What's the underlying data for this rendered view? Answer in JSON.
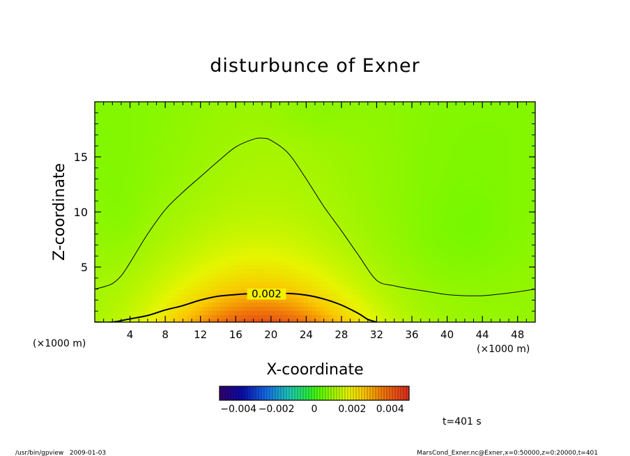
{
  "chart_data": {
    "type": "heatmap",
    "title": "disturbunce of Exner",
    "xlabel": "X-coordinate",
    "ylabel": "Z-coordinate",
    "x_unit": "(×1000 m)",
    "x_unit_right": "(×1000 m)",
    "xlim": [
      0,
      50
    ],
    "ylim": [
      0,
      20
    ],
    "x_ticks": [
      4,
      8,
      12,
      16,
      20,
      24,
      28,
      32,
      36,
      40,
      44,
      48
    ],
    "x_tick_labels": [
      "4",
      "8",
      "12",
      "16",
      "20",
      "24",
      "28",
      "32",
      "36",
      "40",
      "44",
      "48"
    ],
    "y_ticks": [
      5,
      10,
      15
    ],
    "y_tick_labels": [
      "5",
      "10",
      "15"
    ],
    "contour_levels": [
      0.001,
      0.002
    ],
    "contour_label": "0.002",
    "contour_label_pos": [
      19.5,
      2.55
    ],
    "contour_0002": [
      [
        0,
        0
      ],
      [
        2,
        0
      ],
      [
        4,
        0.3
      ],
      [
        6,
        0.6
      ],
      [
        8,
        1.1
      ],
      [
        10,
        1.5
      ],
      [
        12,
        2.0
      ],
      [
        14,
        2.35
      ],
      [
        16,
        2.5
      ],
      [
        18,
        2.6
      ],
      [
        20,
        2.6
      ],
      [
        22,
        2.6
      ],
      [
        24,
        2.45
      ],
      [
        26,
        2.1
      ],
      [
        28,
        1.55
      ],
      [
        30,
        0.75
      ],
      [
        31,
        0.25
      ],
      [
        32,
        0
      ]
    ],
    "contour_0001": [
      [
        0,
        3.0
      ],
      [
        1,
        3.2
      ],
      [
        2,
        3.5
      ],
      [
        3,
        4.2
      ],
      [
        4,
        5.4
      ],
      [
        6,
        8.0
      ],
      [
        8,
        10.2
      ],
      [
        10,
        11.8
      ],
      [
        12,
        13.2
      ],
      [
        14,
        14.6
      ],
      [
        16,
        15.9
      ],
      [
        18,
        16.6
      ],
      [
        19,
        16.7
      ],
      [
        20,
        16.5
      ],
      [
        22,
        15.3
      ],
      [
        24,
        13.0
      ],
      [
        26,
        10.5
      ],
      [
        28,
        8.3
      ],
      [
        30,
        6.0
      ],
      [
        32,
        3.8
      ],
      [
        34,
        3.3
      ],
      [
        36,
        3.0
      ],
      [
        38,
        2.75
      ],
      [
        40,
        2.5
      ],
      [
        42,
        2.4
      ],
      [
        44,
        2.4
      ],
      [
        46,
        2.55
      ],
      [
        48,
        2.75
      ],
      [
        50,
        3.0
      ]
    ],
    "field_model": {
      "base": 0.0008,
      "peak_amplitude": 0.0036,
      "peak_center": [
        19,
        0
      ],
      "peak_sigma_x": 8,
      "peak_scale_z": 5,
      "background_range": [
        0.0005,
        0.0009
      ]
    },
    "colorbar": {
      "range": [
        -0.005,
        0.005
      ],
      "tick_values": [
        -0.004,
        -0.002,
        0,
        0.002,
        0.004
      ],
      "tick_labels": [
        "−0.004",
        "−0.002",
        "0",
        "0.002",
        "0.004"
      ]
    },
    "time_label": "t=401 s"
  },
  "footer": {
    "left": "/usr/bin/gpview   2009-01-03",
    "right": "MarsCond_Exner.nc@Exner,x=0:50000,z=0:20000,t=401"
  }
}
